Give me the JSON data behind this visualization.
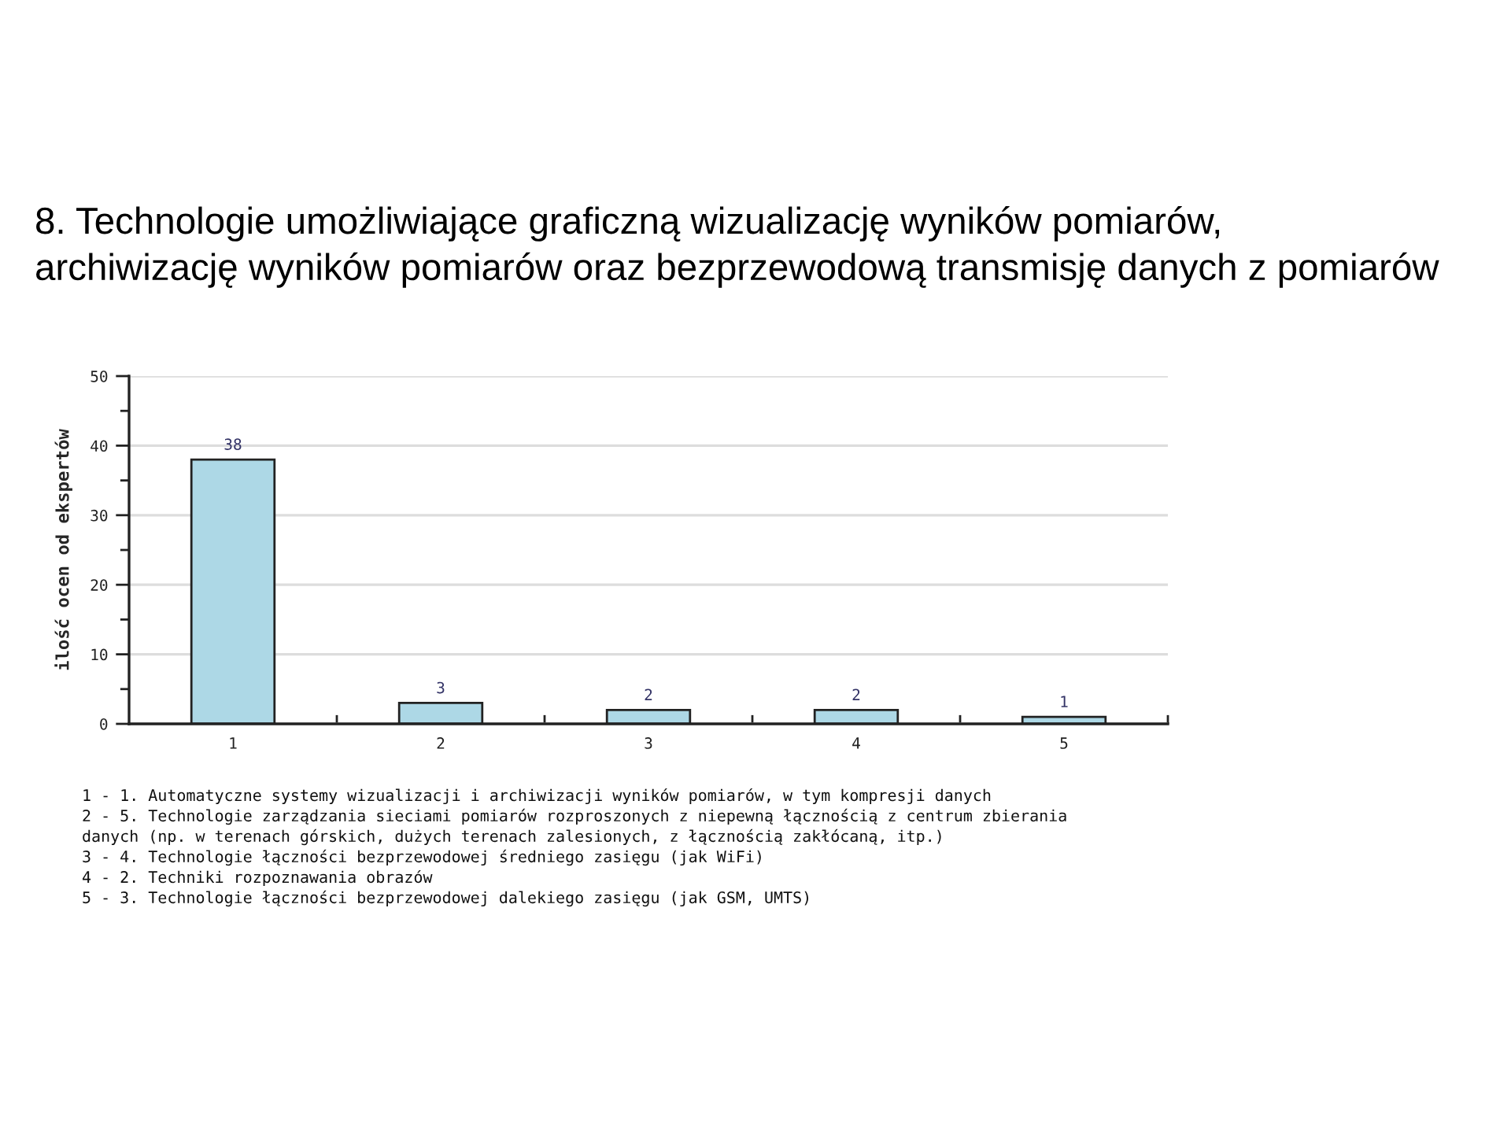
{
  "chart_data": {
    "type": "bar",
    "title": "8. Technologie umożliwiające graficzną wizualizację wyników pomiarów,\narchiwizację wyników pomiarów oraz bezprzewodową transmisję danych z pomiarów",
    "ylabel": "ilość ocen od ekspertów",
    "categories": [
      "1",
      "2",
      "3",
      "4",
      "5"
    ],
    "values": [
      38,
      3,
      2,
      2,
      1
    ],
    "color": "#add8e6",
    "ylim": [
      0,
      50
    ],
    "yticks": [
      0,
      {
        "value": 5,
        "label": null
      },
      10,
      {
        "value": 15,
        "label": null
      },
      20,
      {
        "value": 25,
        "label": null
      },
      30,
      {
        "value": 35,
        "label": null
      },
      40,
      {
        "value": 45,
        "label": null
      },
      50
    ],
    "grid": "y",
    "data_labels": true,
    "annotations": [
      "1 - 1. Automatyczne systemy wizualizacji i archiwizacji wyników pomiarów, w tym kompresji danych",
      "2 - 5. Technologie zarządzania sieciami pomiarów rozproszonych z niepewną łącznością z centrum zbierania",
      "danych (np. w terenach górskich, dużych terenach zalesionych, z łącznością zakłócaną, itp.)",
      "3 - 4. Technologie łączności bezprzewodowej średniego zasięgu (jak WiFi)",
      "4 - 2. Techniki rozpoznawania obrazów",
      "5 - 3. Technologie łączności bezprzewodowej dalekiego zasięgu (jak GSM, UMTS)"
    ]
  }
}
